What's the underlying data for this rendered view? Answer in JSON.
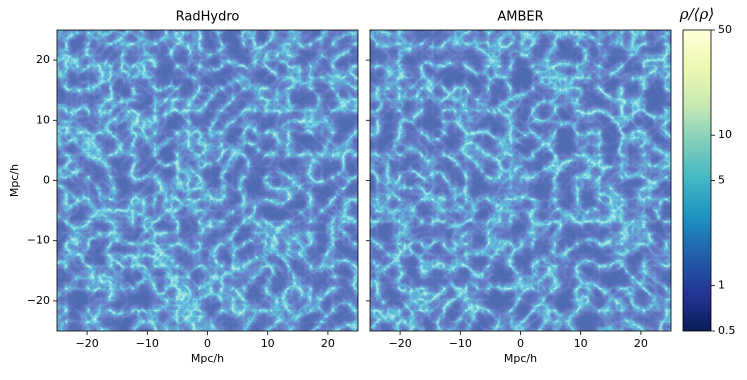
{
  "chart_data": [
    {
      "type": "image",
      "title": "RadHydro",
      "xlabel": "Mpc/h",
      "ylabel": "Mpc/h",
      "xlim": [
        -25,
        25
      ],
      "ylim": [
        -25,
        25
      ],
      "xticks": [
        {
          "value": -20,
          "label": "−20"
        },
        {
          "value": -10,
          "label": "−10"
        },
        0,
        10,
        20
      ],
      "yticks": [
        {
          "value": -20,
          "label": "−20"
        },
        {
          "value": -10,
          "label": "−10"
        },
        0,
        10,
        20
      ]
    },
    {
      "type": "image",
      "title": "AMBER",
      "xlabel": "Mpc/h",
      "xlim": [
        -25,
        25
      ],
      "ylim": [
        -25,
        25
      ],
      "xticks": [
        {
          "value": -20,
          "label": "−20"
        },
        {
          "value": -10,
          "label": "−10"
        },
        0,
        10,
        20
      ],
      "yticks": [
        -20,
        -10,
        0,
        10,
        20
      ],
      "ytick_labels": false
    },
    {
      "type": "colorbar",
      "label": "ρ/⟨ρ⟩",
      "log": true,
      "lim": [
        0.5,
        50
      ],
      "ticks": [
        0.5,
        1,
        5,
        10,
        50
      ],
      "colors": [
        "#081d58",
        "#253494",
        "#225ea8",
        "#1d91c0",
        "#41b6c4",
        "#7fcdbb",
        "#c7e9b4",
        "#edf8b1",
        "#ffffd9"
      ]
    }
  ]
}
